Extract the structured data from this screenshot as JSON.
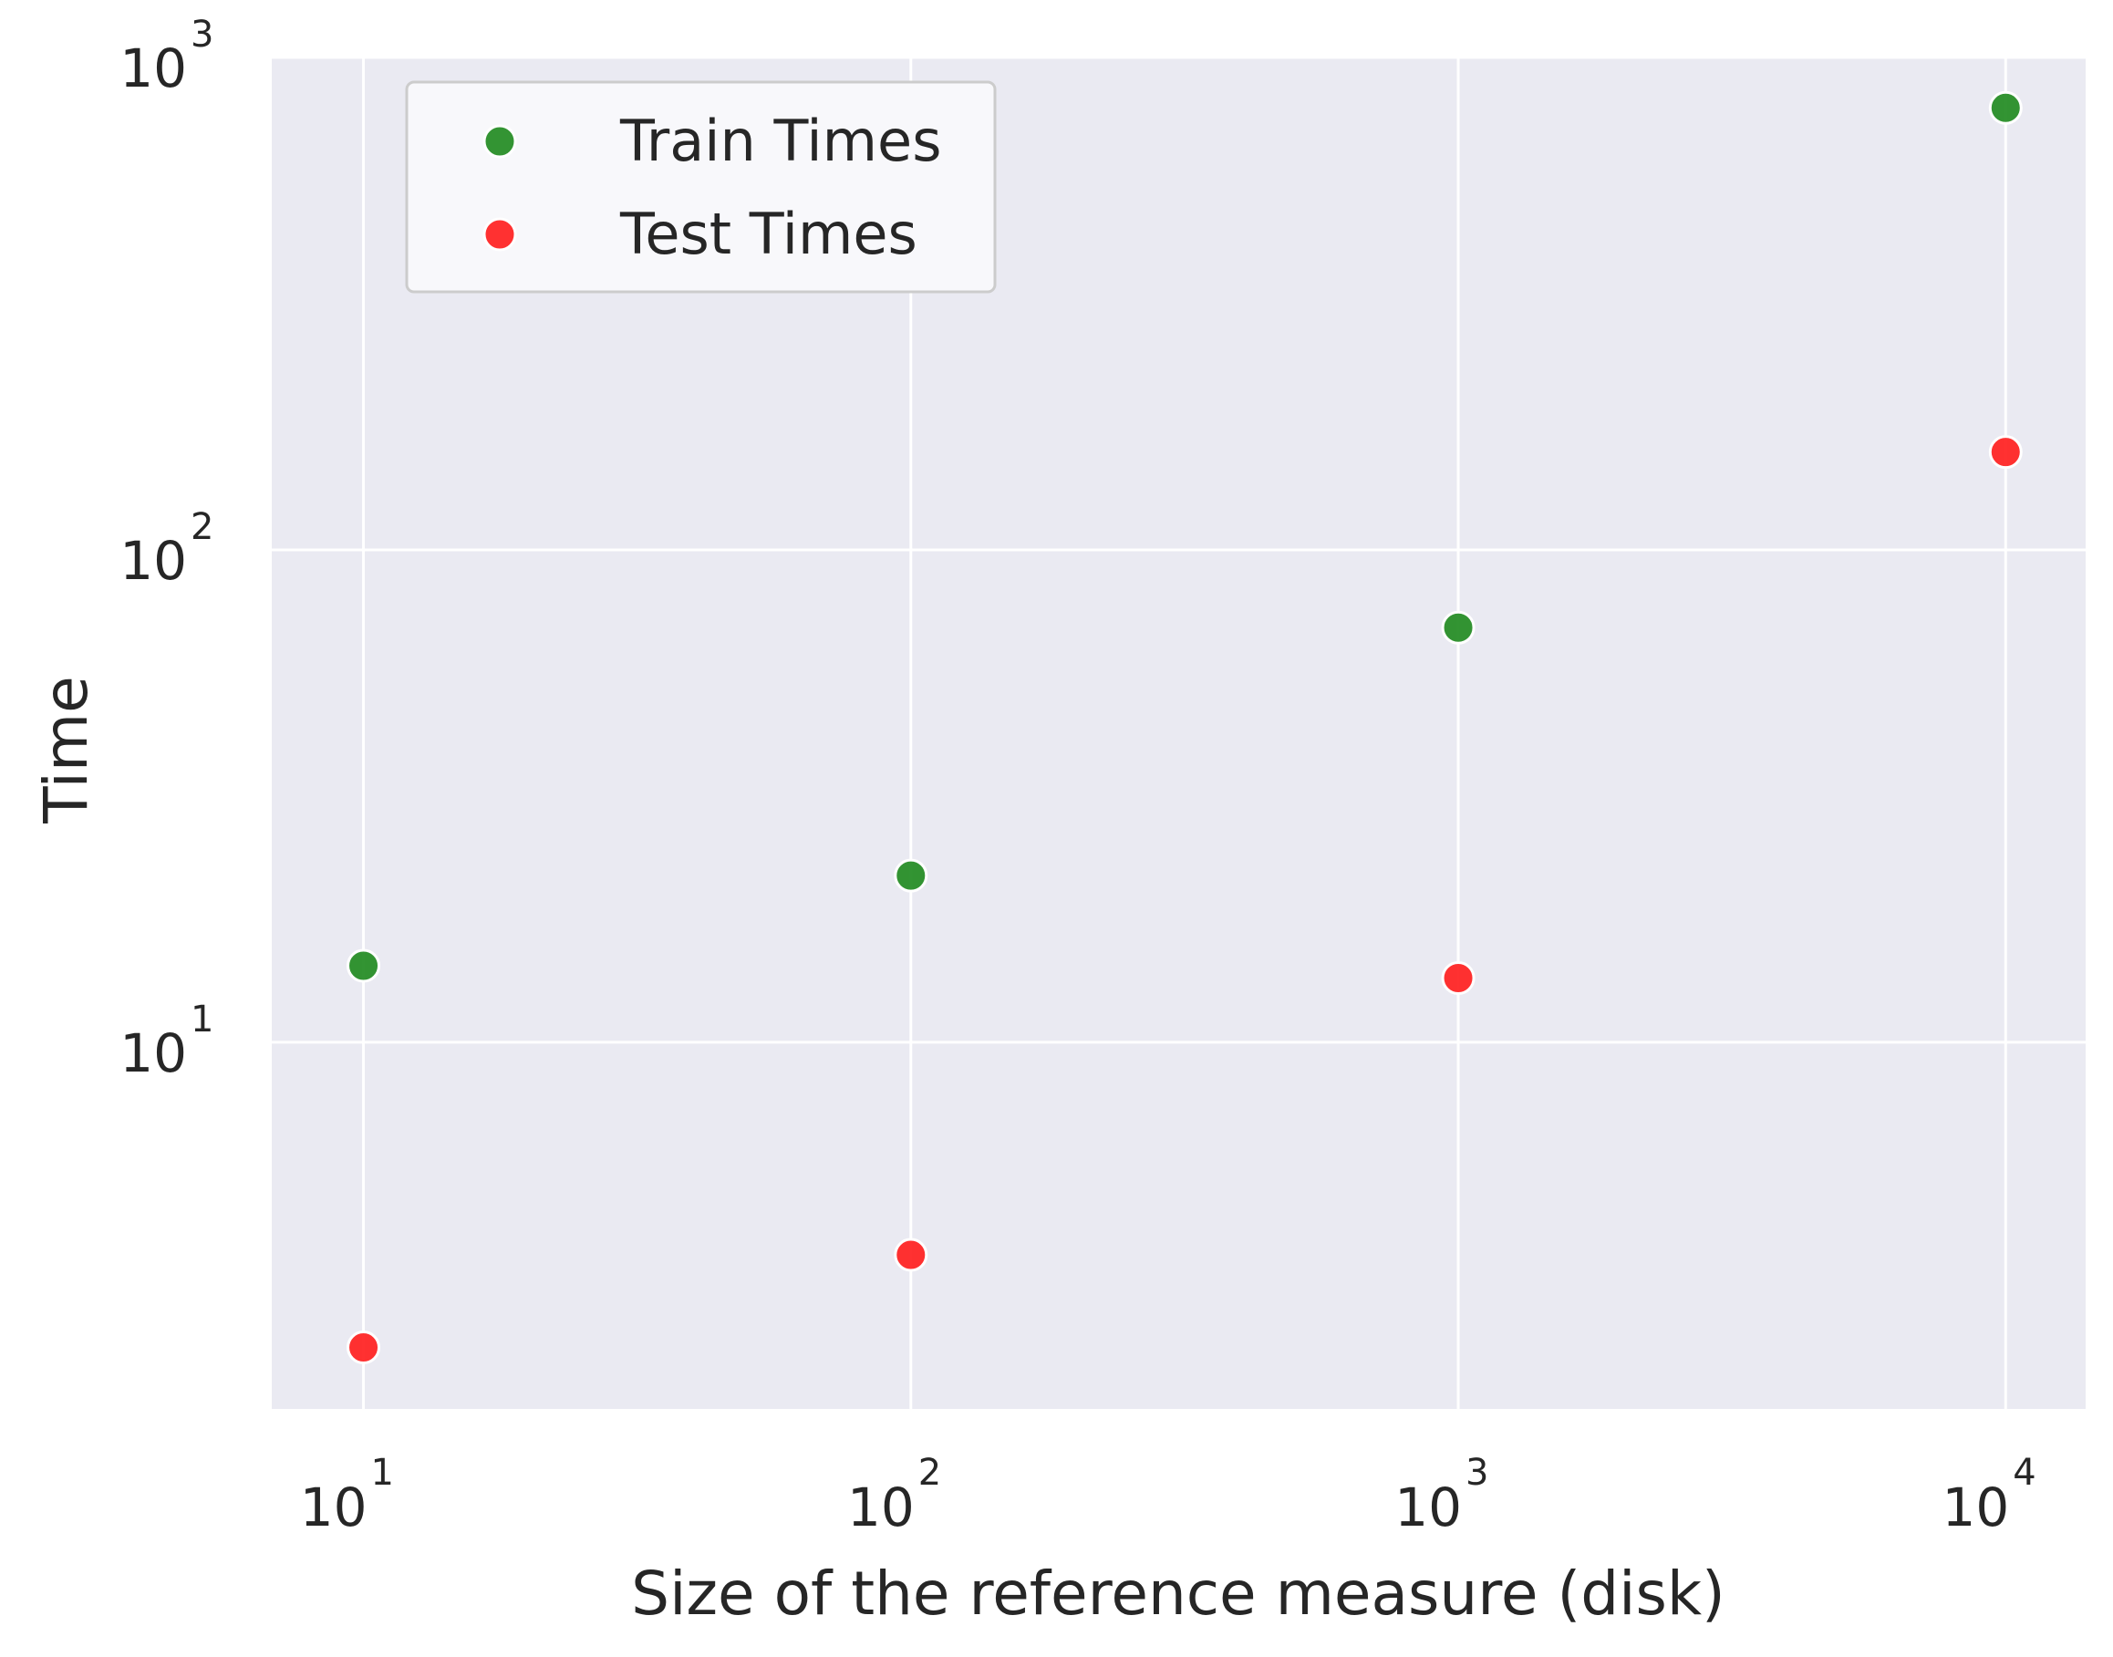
{
  "chart_data": {
    "type": "scatter",
    "title": "",
    "xlabel": "Size of the reference measure (disk)",
    "ylabel": "Time",
    "xscale": "log",
    "yscale": "log",
    "xlim": [
      6.8,
      14000
    ],
    "ylim": [
      1.8,
      1000
    ],
    "x_ticks": [
      {
        "base": "10",
        "exp": "1",
        "value": 10
      },
      {
        "base": "10",
        "exp": "2",
        "value": 100
      },
      {
        "base": "10",
        "exp": "3",
        "value": 1000
      },
      {
        "base": "10",
        "exp": "4",
        "value": 10000
      }
    ],
    "y_ticks": [
      {
        "base": "10",
        "exp": "1",
        "value": 10
      },
      {
        "base": "10",
        "exp": "2",
        "value": 100
      },
      {
        "base": "10",
        "exp": "3",
        "value": 1000
      }
    ],
    "grid": true,
    "legend_position": "top-left",
    "series": [
      {
        "name": "Train Times",
        "color": "#228b22",
        "x": [
          10,
          100,
          1000,
          10000
        ],
        "y": [
          14.3,
          21.8,
          69.5,
          790
        ]
      },
      {
        "name": "Test Times",
        "color": "#ff2020",
        "x": [
          10,
          100,
          1000,
          10000
        ],
        "y": [
          2.4,
          3.7,
          13.5,
          158
        ]
      }
    ],
    "colors": {
      "plot_background": "#eaeaf2",
      "grid": "#ffffff",
      "legend_background": "#f8f8fb"
    }
  }
}
